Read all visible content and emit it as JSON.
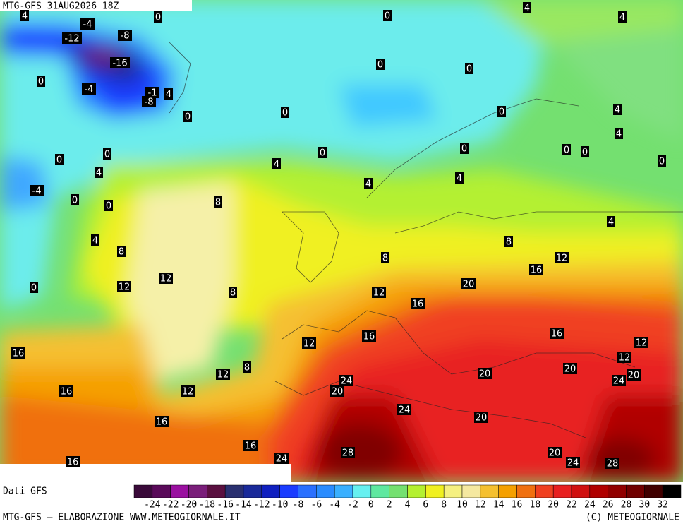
{
  "header": {
    "title": "MTG-GFS 31AUG2026 18Z"
  },
  "contour_labels": [
    4,
    -4,
    0,
    0,
    4,
    4,
    -12,
    -8,
    -16,
    0,
    0,
    0,
    -4,
    -1,
    4,
    -8,
    0,
    0,
    0,
    4,
    4,
    0,
    0,
    0,
    0,
    0,
    0,
    0,
    4,
    4,
    4,
    4,
    -4,
    0,
    0,
    8,
    4,
    4,
    8,
    8,
    8,
    12,
    16,
    0,
    12,
    12,
    8,
    20,
    12,
    16,
    16,
    16,
    12,
    12,
    12,
    16,
    8,
    12,
    20,
    20,
    20,
    24,
    24,
    20,
    16,
    12,
    24,
    20,
    16,
    16,
    28,
    20,
    24,
    24,
    28,
    16
  ],
  "legend": {
    "source": "Dati GFS",
    "scale": [
      -24,
      -22,
      -20,
      -18,
      -16,
      -14,
      -12,
      -10,
      -8,
      -6,
      -4,
      -2,
      0,
      2,
      4,
      6,
      8,
      10,
      12,
      14,
      16,
      18,
      20,
      22,
      24,
      26,
      28,
      30,
      32
    ]
  },
  "footer": {
    "left": "MTG-GFS — ELABORAZIONE WWW.METEOGIORNALE.IT",
    "right": "(C) METEOGIORNALE"
  }
}
